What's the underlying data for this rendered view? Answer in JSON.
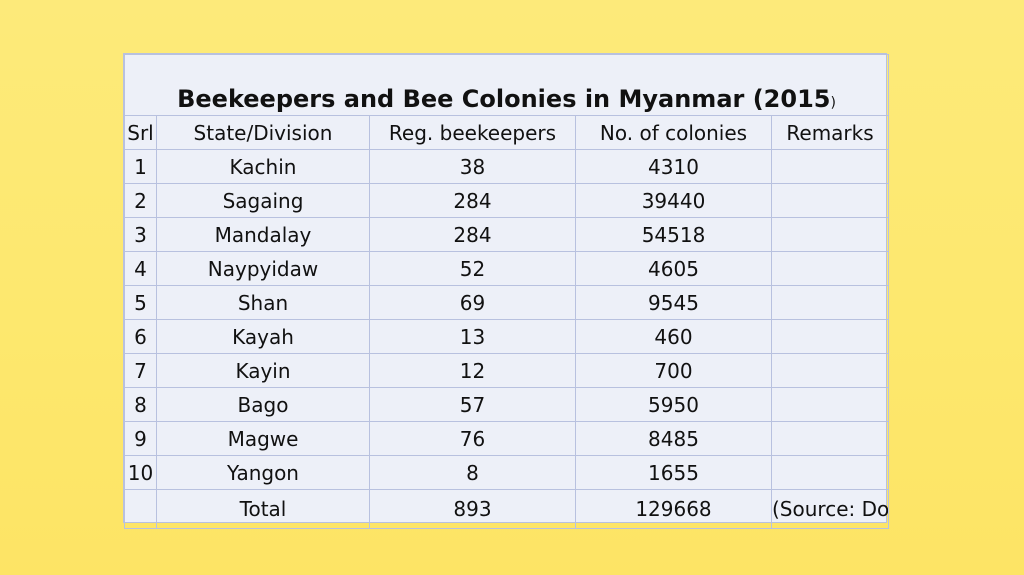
{
  "table": {
    "title_main": "Beekeepers and Bee Colonies in Myanmar (2015",
    "title_paren": ")",
    "headers": {
      "srl": "Srl",
      "state": "State/Division",
      "beekeepers": "Reg. beekeepers",
      "colonies": "No. of colonies",
      "remarks": "Remarks"
    },
    "rows": [
      {
        "srl": "1",
        "state": "Kachin",
        "beekeepers": "38",
        "colonies": "4310"
      },
      {
        "srl": "2",
        "state": "Sagaing",
        "beekeepers": "284",
        "colonies": "39440"
      },
      {
        "srl": "3",
        "state": "Mandalay",
        "beekeepers": "284",
        "colonies": "54518"
      },
      {
        "srl": "4",
        "state": "Naypyidaw",
        "beekeepers": "52",
        "colonies": "4605"
      },
      {
        "srl": "5",
        "state": "Shan",
        "beekeepers": "69",
        "colonies": "9545"
      },
      {
        "srl": "6",
        "state": "Kayah",
        "beekeepers": "13",
        "colonies": "460"
      },
      {
        "srl": "7",
        "state": "Kayin",
        "beekeepers": "12",
        "colonies": "700"
      },
      {
        "srl": "8",
        "state": "Bago",
        "beekeepers": "57",
        "colonies": "5950"
      },
      {
        "srl": "9",
        "state": "Magwe",
        "beekeepers": "76",
        "colonies": "8485"
      },
      {
        "srl": "10",
        "state": "Yangon",
        "beekeepers": "8",
        "colonies": "1655"
      }
    ],
    "total": {
      "label": "Total",
      "beekeepers": "893",
      "colonies": "129668",
      "source": "(Source: DoA)"
    }
  },
  "colors": {
    "background": "#fde86e",
    "table_fill": "#edf0f8",
    "grid_line": "#b8c1df"
  }
}
